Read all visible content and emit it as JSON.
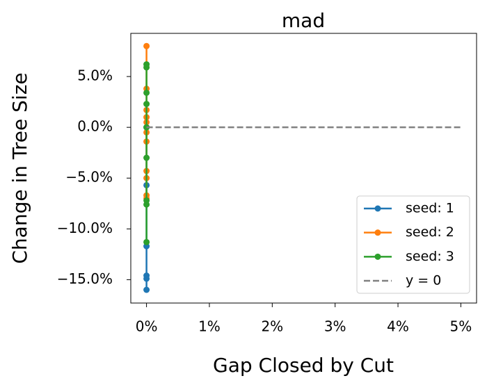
{
  "chart_data": {
    "type": "line",
    "title": "mad",
    "x_label": "Gap Closed by Cut",
    "y_label": "Change in Tree Size",
    "xlim": [
      -0.25,
      5.25
    ],
    "ylim": [
      -17.3,
      9.25
    ],
    "xticks": [
      {
        "value": 0,
        "label": "0%"
      },
      {
        "value": 1,
        "label": "1%"
      },
      {
        "value": 2,
        "label": "2%"
      },
      {
        "value": 3,
        "label": "3%"
      },
      {
        "value": 4,
        "label": "4%"
      },
      {
        "value": 5,
        "label": "5%"
      }
    ],
    "yticks": [
      {
        "value": -15,
        "label": "−15.0%"
      },
      {
        "value": -10,
        "label": "−10.0%"
      },
      {
        "value": -5,
        "label": "−5.0%"
      },
      {
        "value": 0,
        "label": "0.0%"
      },
      {
        "value": 5,
        "label": "5.0%"
      }
    ],
    "legend": "lower right",
    "series": [
      {
        "name": "seed: 1",
        "color": "#1f77b4",
        "marker": true,
        "x": [
          0,
          0,
          0,
          0,
          0,
          0
        ],
        "values": [
          0,
          -5.7,
          -11.7,
          -14.6,
          -14.9,
          -16.0
        ]
      },
      {
        "name": "seed: 2",
        "color": "#ff7f0e",
        "marker": true,
        "x": [
          0,
          0,
          0,
          0,
          0,
          0,
          0,
          0,
          0,
          0,
          0
        ],
        "values": [
          8.0,
          3.8,
          1.7,
          1.0,
          0.5,
          -0.5,
          -1.4,
          -4.3,
          -5.0,
          -6.7,
          -7.0
        ]
      },
      {
        "name": "seed: 3",
        "color": "#2ca02c",
        "marker": true,
        "x": [
          0,
          0,
          0,
          0,
          0,
          0,
          0,
          0,
          0
        ],
        "values": [
          6.2,
          5.9,
          3.4,
          2.3,
          0,
          -3.0,
          -7.2,
          -7.6,
          -11.3
        ]
      },
      {
        "name": "y = 0",
        "color": "#808080",
        "dashed": true,
        "x": [
          0,
          5
        ],
        "values": [
          0,
          0
        ]
      }
    ]
  }
}
